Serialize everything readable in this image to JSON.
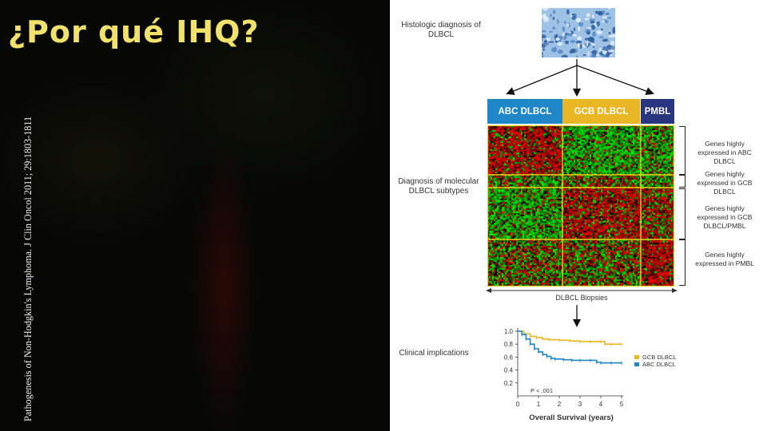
{
  "slide": {
    "title": "¿Por qué IHQ?",
    "citation": "Pathogenesis of Non-Hodgkin's Lymphoma. J Clin Oncol 2011; 29:1803-1811"
  },
  "diagram": {
    "histologic_label": "Histologic diagnosis of DLBCL",
    "molecular_label": "Diagnosis of molecular DLBCL subtypes",
    "clinical_label": "Clinical implications",
    "biopsies_label": "DLBCL Biopsies",
    "subtypes": [
      {
        "label": "ABC DLBCL",
        "color": "#1f86c8"
      },
      {
        "label": "GCB DLBCL",
        "color": "#e9b624"
      },
      {
        "label": "PMBL",
        "color": "#2a3580"
      }
    ],
    "gene_groups": [
      "Genes highly expressed in ABC DLBCL",
      "Genes highly expressed in GCB DLBCL",
      "Genes highly expressed in GCB DLBCL/PMBL",
      "Genes highly expressed in PMBL"
    ]
  },
  "chart_data": {
    "type": "line",
    "xlabel": "Overall Survival (years)",
    "xlim": [
      0,
      5
    ],
    "ylim": [
      0,
      1.0
    ],
    "x_ticks": [
      "0",
      "1",
      "2",
      "3",
      "4",
      "5"
    ],
    "y_ticks": [
      "0.2",
      "0.4",
      "0.6",
      "0.8",
      "1.0"
    ],
    "annotation": "P < .001",
    "series": [
      {
        "name": "GCB DLBCL",
        "color": "#e9b624",
        "x": [
          0,
          0.3,
          0.6,
          0.9,
          1.2,
          1.5,
          2.0,
          2.5,
          3.0,
          3.5,
          4.0,
          4.2,
          4.5,
          5.0
        ],
        "y": [
          1.0,
          0.96,
          0.92,
          0.9,
          0.88,
          0.87,
          0.86,
          0.85,
          0.84,
          0.84,
          0.84,
          0.8,
          0.8,
          0.8
        ]
      },
      {
        "name": "ABC DLBCL",
        "color": "#1f86c8",
        "x": [
          0,
          0.2,
          0.4,
          0.6,
          0.8,
          1.0,
          1.2,
          1.4,
          1.6,
          1.8,
          2.2,
          2.6,
          3.0,
          3.5,
          3.8,
          4.0,
          4.5,
          5.0
        ],
        "y": [
          1.0,
          0.95,
          0.88,
          0.8,
          0.73,
          0.68,
          0.64,
          0.61,
          0.58,
          0.57,
          0.56,
          0.55,
          0.55,
          0.55,
          0.52,
          0.51,
          0.51,
          0.51
        ]
      }
    ]
  }
}
